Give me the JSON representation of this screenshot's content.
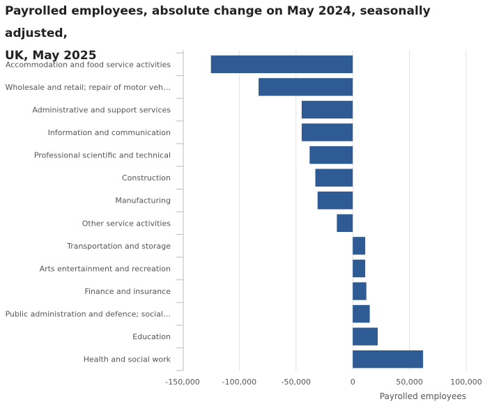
{
  "header": {
    "title_line1": "Payrolled employees, absolute change on May 2024, seasonally adjusted,",
    "title_line2": "UK, May 2025"
  },
  "chart_data": {
    "type": "bar",
    "orientation": "horizontal",
    "title": "Payrolled employees, absolute change on May 2024, seasonally adjusted, UK, May 2025",
    "xlabel": "Payrolled employees",
    "ylabel": "",
    "categories": [
      "Accommodation and food service activities",
      "Wholesale and retail; repair of motor veh…",
      "Administrative and support services",
      "Information and communication",
      "Professional scientific and technical",
      "Construction",
      "Manufacturing",
      "Other service activities",
      "Transportation and storage",
      "Arts entertainment and recreation",
      "Finance and insurance",
      "Public administration and defence; social…",
      "Education",
      "Health and social work"
    ],
    "values": [
      -125000,
      -83000,
      -45000,
      -45000,
      -38000,
      -33000,
      -31000,
      -14000,
      11000,
      11000,
      12000,
      15000,
      22000,
      62000
    ],
    "xlim": [
      -150000,
      100000
    ],
    "xticks": [
      -150000,
      -100000,
      -50000,
      0,
      50000,
      100000
    ],
    "xtick_labels": [
      "-150,000",
      "-100,000",
      "-50,000",
      "0",
      "50,000",
      "100,000"
    ],
    "grid": true,
    "bar_color": "#2e5b94",
    "grid_color": "#e2e2e2",
    "axis_color": "#bbbbbb"
  }
}
